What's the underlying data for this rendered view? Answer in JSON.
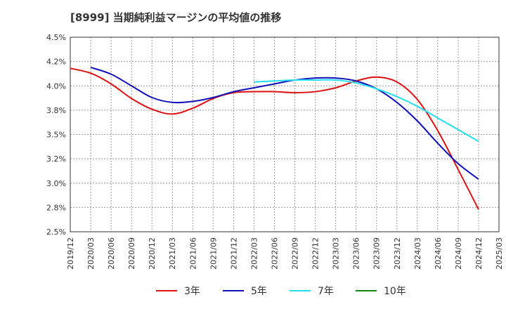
{
  "chart_data": {
    "type": "line",
    "title": "[8999]  当期純利益マージンの平均値の推移",
    "xlabel": "",
    "ylabel": "",
    "x_ticks": [
      "2019/12",
      "2020/03",
      "2020/06",
      "2020/09",
      "2020/12",
      "2021/03",
      "2021/06",
      "2021/09",
      "2021/12",
      "2022/03",
      "2022/06",
      "2022/09",
      "2022/12",
      "2023/03",
      "2023/06",
      "2023/09",
      "2023/12",
      "2024/03",
      "2024/06",
      "2024/09",
      "2024/12",
      "2025/03"
    ],
    "y_ticks": [
      "2.5%",
      "2.8%",
      "3.0%",
      "3.2%",
      "3.5%",
      "3.8%",
      "4.0%",
      "4.2%",
      "4.5%"
    ],
    "ylim": [
      2.5,
      4.5
    ],
    "grid": true,
    "legend_position": "bottom",
    "series": [
      {
        "name": "3年",
        "color": "#dd1111",
        "x": [
          "2019/12",
          "2020/03",
          "2020/06",
          "2020/09",
          "2020/12",
          "2021/03",
          "2021/06",
          "2021/09",
          "2021/12",
          "2022/03",
          "2022/06",
          "2022/09",
          "2022/12",
          "2023/03",
          "2023/06",
          "2023/09",
          "2023/12",
          "2024/03",
          "2024/06",
          "2024/09",
          "2024/12"
        ],
        "values": [
          4.18,
          4.13,
          4.02,
          3.87,
          3.76,
          3.71,
          3.77,
          3.87,
          3.93,
          3.94,
          3.94,
          3.93,
          3.94,
          3.98,
          4.05,
          4.09,
          4.04,
          3.86,
          3.54,
          3.14,
          2.73
        ]
      },
      {
        "name": "5年",
        "color": "#1111bb",
        "x": [
          "2020/03",
          "2020/06",
          "2020/09",
          "2020/12",
          "2021/03",
          "2021/06",
          "2021/09",
          "2021/12",
          "2022/03",
          "2022/06",
          "2022/09",
          "2022/12",
          "2023/03",
          "2023/06",
          "2023/09",
          "2023/12",
          "2024/03",
          "2024/06",
          "2024/09",
          "2024/12"
        ],
        "values": [
          4.19,
          4.12,
          4.0,
          3.88,
          3.83,
          3.84,
          3.88,
          3.94,
          3.98,
          4.02,
          4.06,
          4.08,
          4.08,
          4.05,
          3.97,
          3.83,
          3.64,
          3.41,
          3.2,
          3.04
        ]
      },
      {
        "name": "7年",
        "color": "#22ddee",
        "x": [
          "2022/03",
          "2022/06",
          "2022/09",
          "2022/12",
          "2023/03",
          "2023/06",
          "2023/09",
          "2023/12",
          "2024/03",
          "2024/06",
          "2024/09",
          "2024/12"
        ],
        "values": [
          4.04,
          4.05,
          4.06,
          4.06,
          4.06,
          4.03,
          3.97,
          3.89,
          3.79,
          3.67,
          3.55,
          3.43
        ]
      },
      {
        "name": "10年",
        "color": "#118811",
        "x": [],
        "values": []
      }
    ]
  }
}
